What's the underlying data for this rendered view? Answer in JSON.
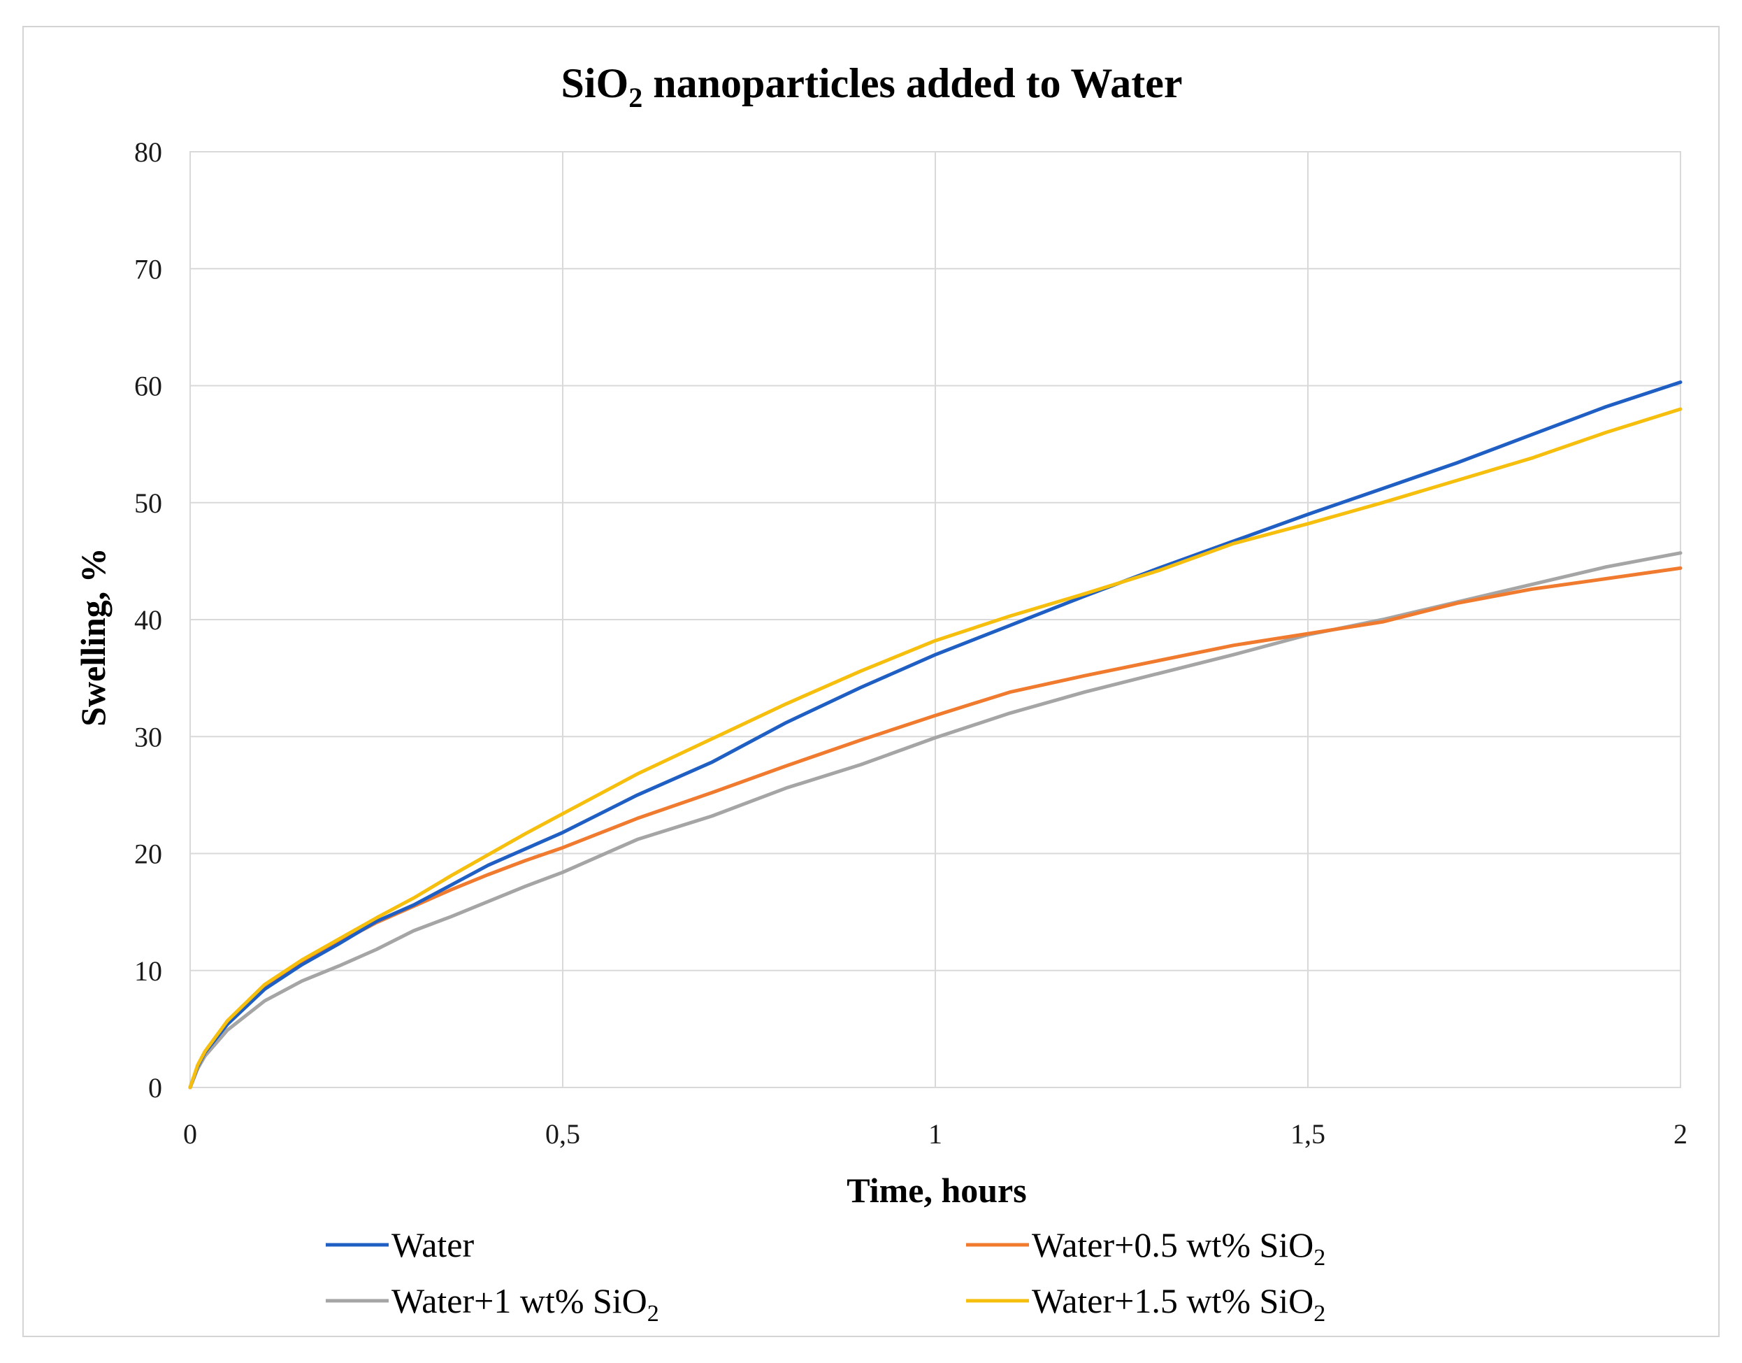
{
  "chart_data": {
    "type": "line",
    "title": {
      "main": "SiO",
      "sub": "2",
      "rest": " nanoparticles added to Water"
    },
    "xlabel": "Time, hours",
    "ylabel": "Swelling, %",
    "xlim": [
      0,
      2
    ],
    "ylim": [
      0,
      80
    ],
    "x_ticks": [
      0,
      0.5,
      1,
      1.5,
      2
    ],
    "x_tick_labels": [
      "0",
      "0,5",
      "1",
      "1,5",
      "2"
    ],
    "y_ticks": [
      0,
      10,
      20,
      30,
      40,
      50,
      60,
      70,
      80
    ],
    "y_tick_labels": [
      "0",
      "10",
      "20",
      "30",
      "40",
      "50",
      "60",
      "70",
      "80"
    ],
    "grid": true,
    "legend_position": "bottom",
    "x": [
      0,
      0.01,
      0.02,
      0.05,
      0.1,
      0.15,
      0.2,
      0.25,
      0.3,
      0.35,
      0.4,
      0.45,
      0.5,
      0.6,
      0.7,
      0.8,
      0.9,
      1.0,
      1.1,
      1.2,
      1.3,
      1.4,
      1.5,
      1.6,
      1.7,
      1.8,
      1.9,
      2.0
    ],
    "series": [
      {
        "name": "Water",
        "legend_main": "Water",
        "legend_sub": "",
        "color": "#1f5fc4",
        "values": [
          0,
          1.8,
          3.0,
          5.4,
          8.4,
          10.5,
          12.3,
          14.2,
          15.6,
          17.3,
          19.0,
          20.4,
          21.8,
          25.0,
          27.8,
          31.2,
          34.2,
          37.0,
          39.5,
          42.0,
          44.4,
          46.7,
          49.0,
          51.2,
          53.4,
          55.8,
          58.2,
          60.3
        ]
      },
      {
        "name": "Water+0.5 wt% SiO2",
        "legend_main": "Water+0.5 wt% SiO",
        "legend_sub": "2",
        "color": "#f07a2e",
        "values": [
          0,
          1.8,
          3.0,
          5.5,
          8.6,
          10.6,
          12.4,
          14.1,
          15.5,
          16.9,
          18.2,
          19.4,
          20.5,
          23.0,
          25.2,
          27.5,
          29.7,
          31.8,
          33.8,
          35.2,
          36.5,
          37.8,
          38.8,
          39.8,
          41.4,
          42.6,
          43.5,
          44.4
        ]
      },
      {
        "name": "Water+1 wt% SiO2",
        "legend_main": "Water+1 wt% SiO",
        "legend_sub": "2",
        "color": "#a5a5a5",
        "values": [
          0,
          1.6,
          2.7,
          4.9,
          7.4,
          9.1,
          10.4,
          11.8,
          13.4,
          14.6,
          15.9,
          17.2,
          18.4,
          21.2,
          23.2,
          25.6,
          27.6,
          29.9,
          32.0,
          33.8,
          35.4,
          37.0,
          38.7,
          40.0,
          41.5,
          43.0,
          44.5,
          45.7
        ]
      },
      {
        "name": "Water+1.5 wt% SiO2",
        "legend_main": "Water+1.5 wt% SiO",
        "legend_sub": "2",
        "color": "#f6bf0e",
        "values": [
          0,
          1.9,
          3.1,
          5.7,
          8.8,
          10.9,
          12.7,
          14.5,
          16.2,
          18.1,
          19.9,
          21.7,
          23.4,
          26.8,
          29.8,
          32.8,
          35.6,
          38.2,
          40.3,
          42.2,
          44.2,
          46.5,
          48.2,
          50.0,
          51.9,
          53.8,
          56.0,
          58.0
        ]
      }
    ]
  }
}
